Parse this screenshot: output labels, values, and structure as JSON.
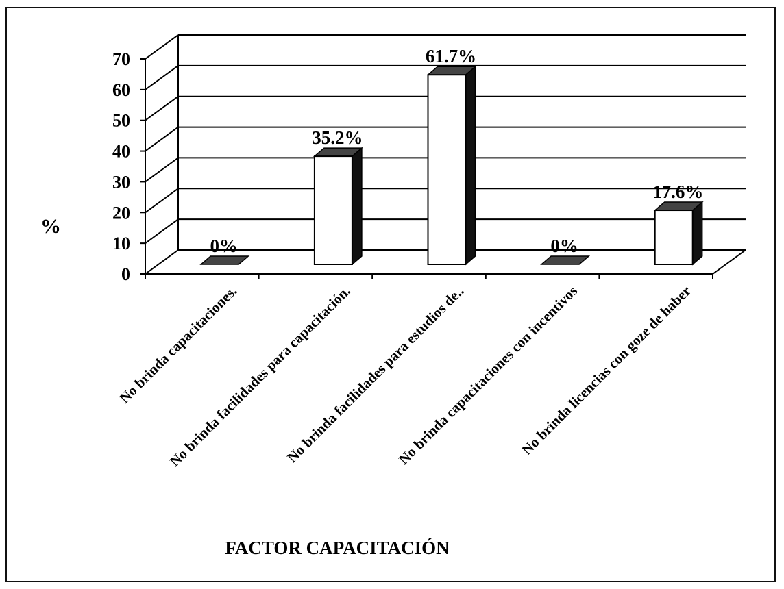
{
  "chart_data": {
    "type": "bar",
    "title": "FACTOR CAPACITACIÓN",
    "xlabel": "",
    "ylabel": "%",
    "ylim": [
      0,
      70
    ],
    "yticks": [
      0,
      10,
      20,
      30,
      40,
      50,
      60,
      70
    ],
    "grid": true,
    "three_d": true,
    "categories": [
      "No brinda capacitaciones.",
      "No brinda facilidades para capacitación.",
      "No brinda facilidades para estudios de..",
      "No brinda capacitaciones con incentivos",
      "No brinda licencias con goze de haber"
    ],
    "values": [
      0,
      35.2,
      61.7,
      0,
      17.6
    ],
    "data_labels": [
      "0%",
      "35.2%",
      "61.7%",
      "0%",
      "17.6%"
    ],
    "colors": {
      "bar_front": "#ffffff",
      "bar_side": "#111111",
      "bar_top": "#444444",
      "grid": "#000000"
    }
  }
}
